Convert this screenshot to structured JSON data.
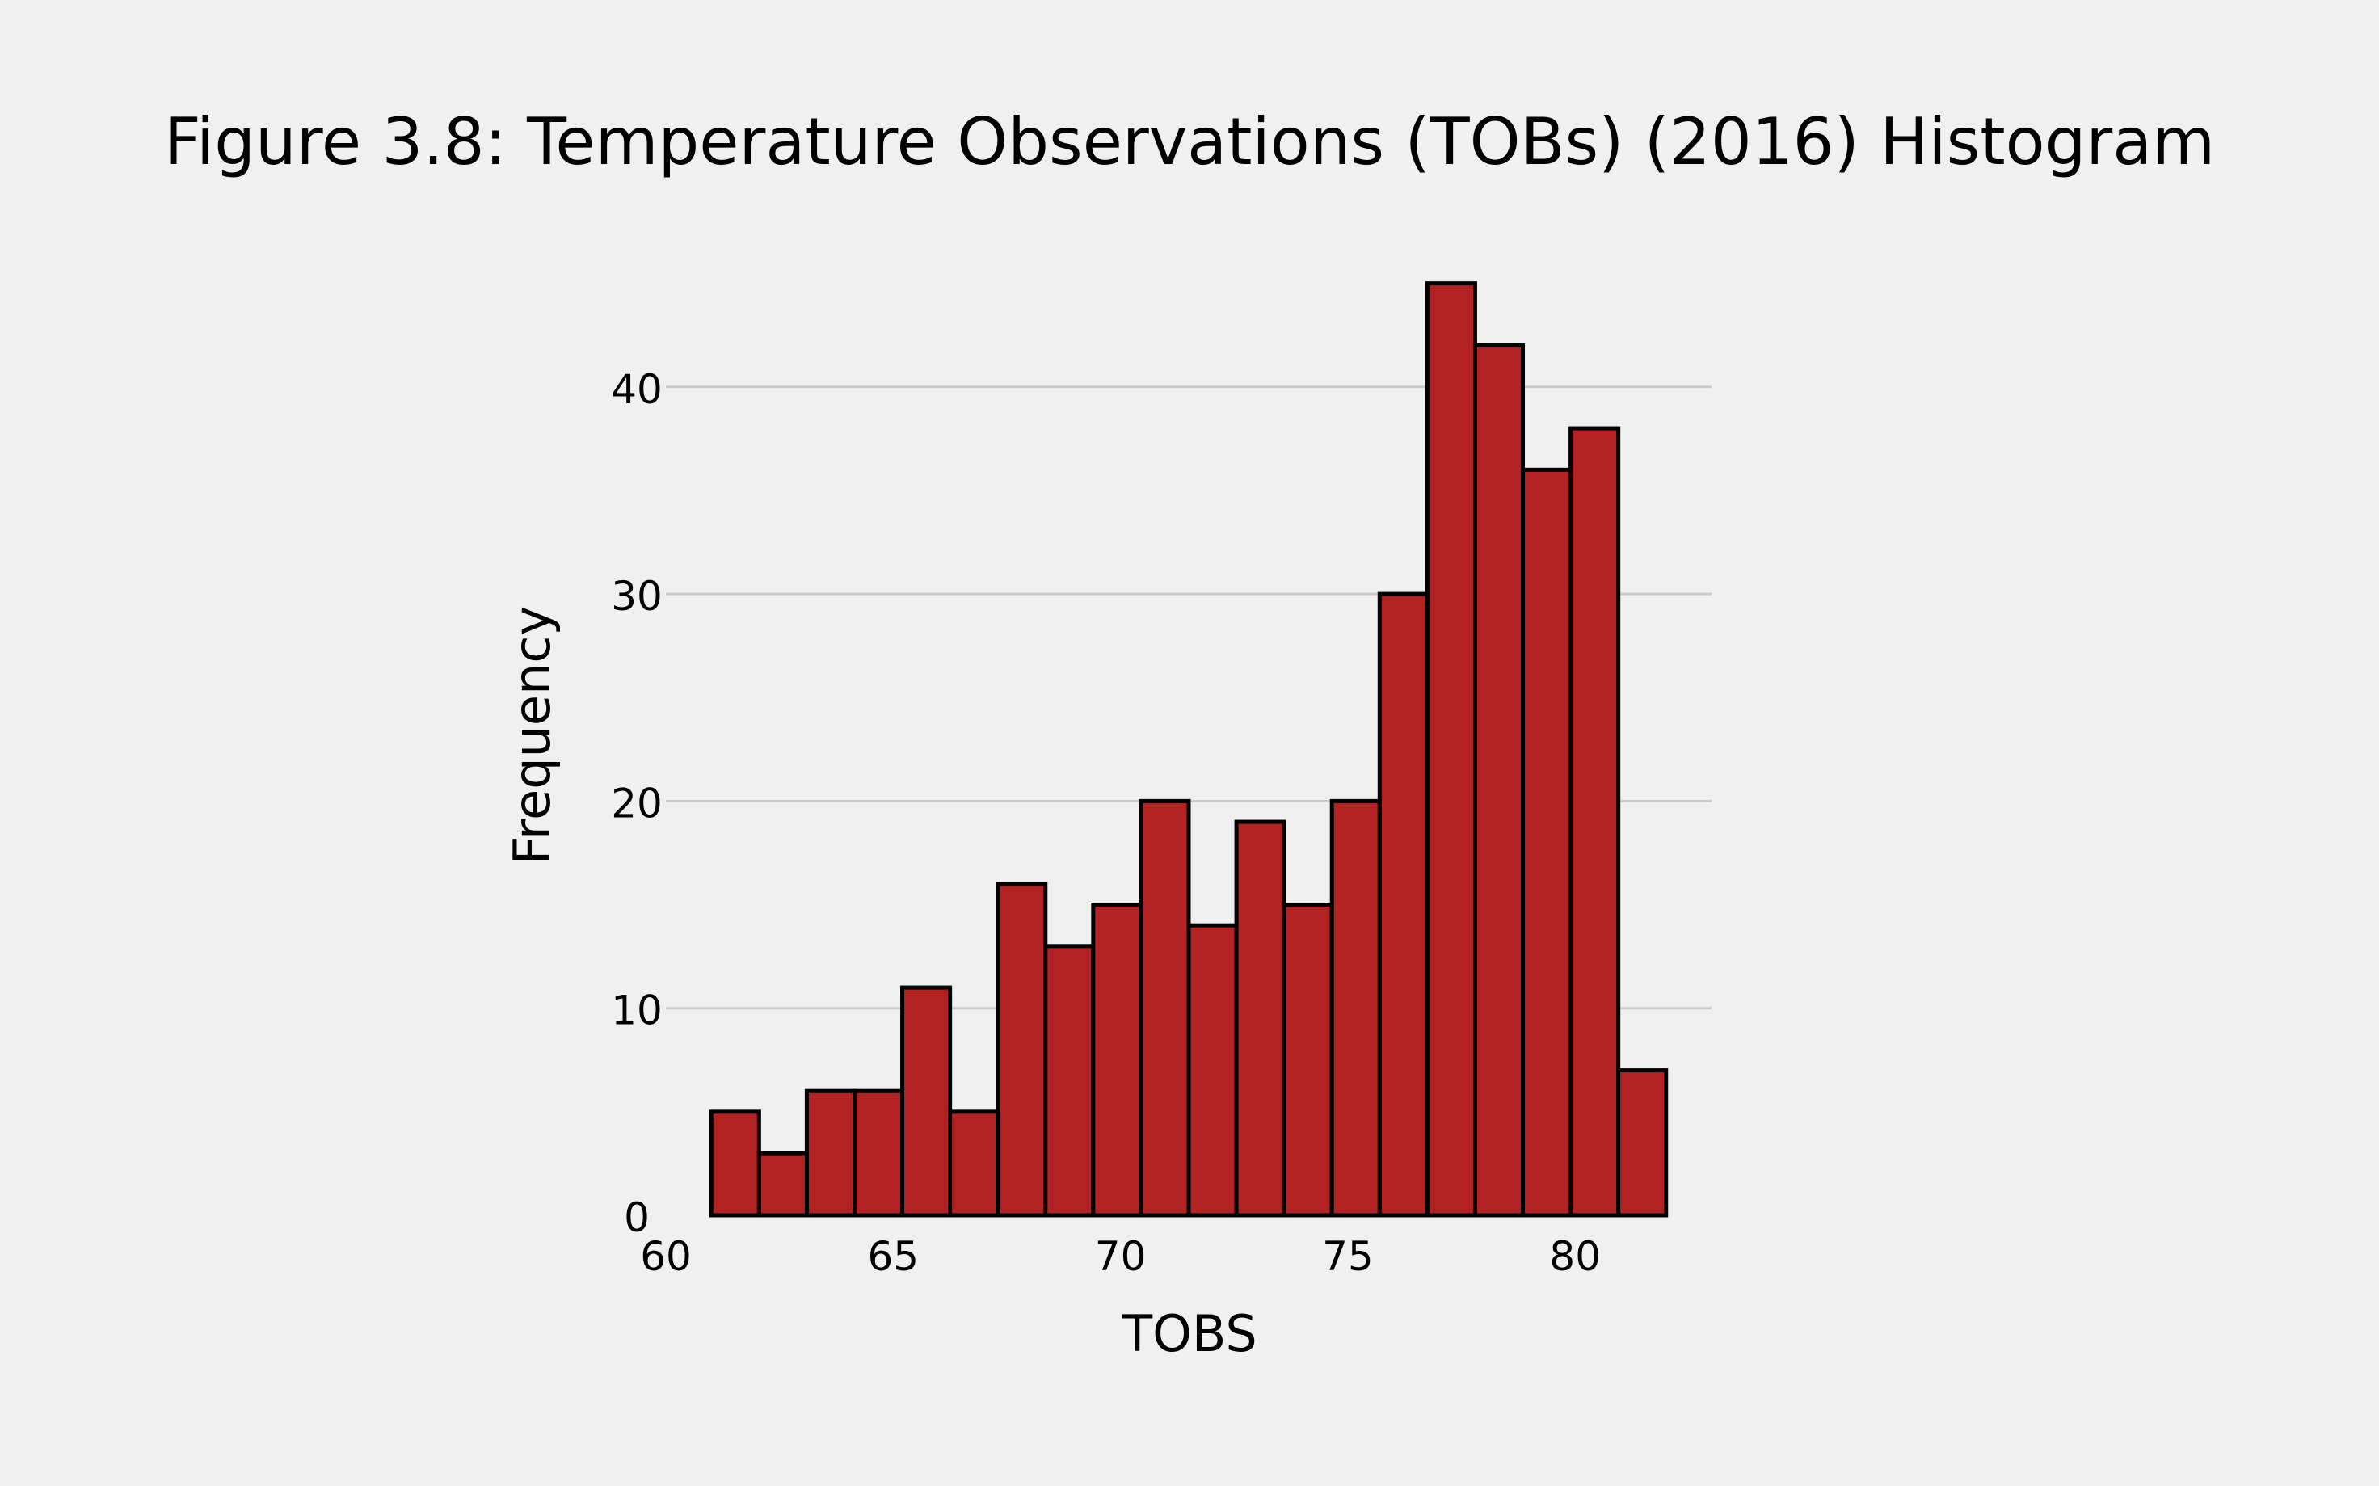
{
  "chart_data": {
    "type": "bar",
    "title": "Figure 3.8: Temperature Observations (TOBs) (2016) Histogram",
    "xlabel": "TOBS",
    "ylabel": "Frequency",
    "xlim": [
      60,
      83
    ],
    "ylim": [
      0,
      46
    ],
    "xticks": [
      60,
      65,
      70,
      75,
      80
    ],
    "yticks": [
      0,
      10,
      20,
      30,
      40
    ],
    "grid": "horizontal",
    "bins": [
      {
        "start": 61.0,
        "end": 62.05,
        "value": 5
      },
      {
        "start": 62.05,
        "end": 63.1,
        "value": 3
      },
      {
        "start": 63.1,
        "end": 64.15,
        "value": 6
      },
      {
        "start": 64.15,
        "end": 65.2,
        "value": 6
      },
      {
        "start": 65.2,
        "end": 66.25,
        "value": 11
      },
      {
        "start": 66.25,
        "end": 67.3,
        "value": 5
      },
      {
        "start": 67.3,
        "end": 68.35,
        "value": 16
      },
      {
        "start": 68.35,
        "end": 69.4,
        "value": 13
      },
      {
        "start": 69.4,
        "end": 70.45,
        "value": 15
      },
      {
        "start": 70.45,
        "end": 71.5,
        "value": 20
      },
      {
        "start": 71.5,
        "end": 72.55,
        "value": 14
      },
      {
        "start": 72.55,
        "end": 73.6,
        "value": 19
      },
      {
        "start": 73.6,
        "end": 74.65,
        "value": 15
      },
      {
        "start": 74.65,
        "end": 75.7,
        "value": 20
      },
      {
        "start": 75.7,
        "end": 76.75,
        "value": 30
      },
      {
        "start": 76.75,
        "end": 77.8,
        "value": 45
      },
      {
        "start": 77.8,
        "end": 78.85,
        "value": 42
      },
      {
        "start": 78.85,
        "end": 79.9,
        "value": 36
      },
      {
        "start": 79.9,
        "end": 80.95,
        "value": 38
      },
      {
        "start": 80.95,
        "end": 82.0,
        "value": 7
      }
    ],
    "colors": {
      "bar_fill": "#b22222",
      "bar_edge": "#000000",
      "background": "#f0f0f0",
      "grid": "#cbcbcb"
    }
  }
}
